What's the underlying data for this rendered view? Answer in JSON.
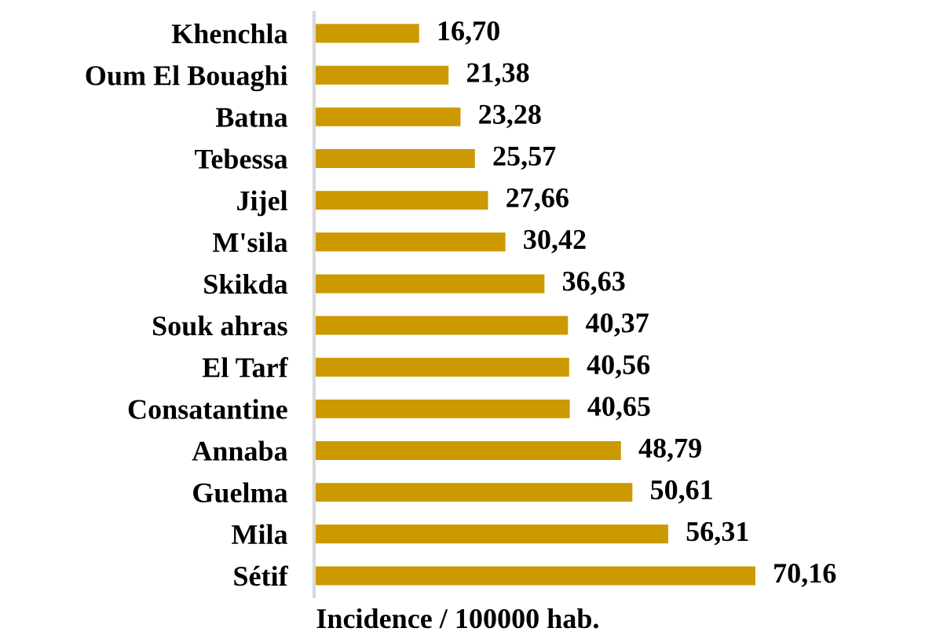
{
  "chart_data": {
    "type": "bar",
    "orientation": "horizontal",
    "xlabel": "Incidence / 100000 hab.",
    "categories": [
      "Khenchla",
      "Oum El Bouaghi",
      "Batna",
      "Tebessa",
      "Jijel",
      "M'sila",
      "Skikda",
      "Souk ahras",
      "El Tarf",
      "Consatantine",
      "Annaba",
      "Guelma",
      "Mila",
      "Sétif"
    ],
    "values": [
      16.7,
      21.38,
      23.28,
      25.57,
      27.66,
      30.42,
      36.63,
      40.37,
      40.56,
      40.65,
      48.79,
      50.61,
      56.31,
      70.16
    ],
    "value_labels": [
      "16,70",
      "21,38",
      "23,28",
      "25,57",
      "27,66",
      "30,42",
      "36,63",
      "40,37",
      "40,56",
      "40,65",
      "48,79",
      "50,61",
      "56,31",
      "70,16"
    ],
    "color": "#cc9900",
    "tick_labels": "y",
    "grid": false
  }
}
